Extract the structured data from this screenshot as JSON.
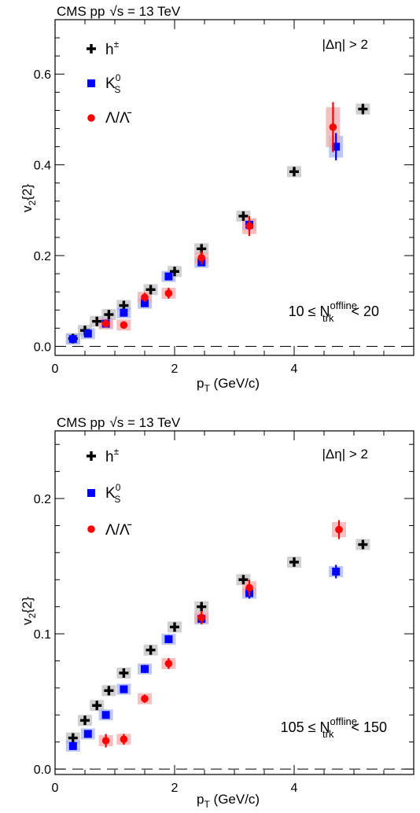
{
  "chart_data": [
    {
      "type": "scatter",
      "title": "CMS pp √s = 13 TeV",
      "title_parts": {
        "experiment": "CMS pp",
        "energy": "s = 13 TeV"
      },
      "annotation_eta": "|Δη| > 2",
      "annotation_mult": {
        "prefix": "10 ≤ N",
        "sup": "offline",
        "sub": "trk",
        "suffix": "< 20"
      },
      "xlabel": {
        "main": "p",
        "sub": "T",
        "rest": " (GeV/c)"
      },
      "ylabel": {
        "main": "v",
        "sub": "2",
        "rest": "{2}"
      },
      "xlim": [
        0,
        6
      ],
      "ylim": [
        -0.02,
        0.72
      ],
      "xticks": [
        0,
        2,
        4
      ],
      "xtick_labels": [
        "0",
        "2",
        "4"
      ],
      "yticks": [
        0.0,
        0.2,
        0.4,
        0.6
      ],
      "ytick_labels": [
        "0.0",
        "0.2",
        "0.4",
        "0.6"
      ],
      "legend_position": "top-left",
      "series": [
        {
          "name": "h",
          "name_sup": "±",
          "marker": "cross",
          "color": "#000000",
          "box_color": "#c0c0c0",
          "x": [
            0.3,
            0.5,
            0.7,
            0.9,
            1.15,
            1.6,
            2.0,
            2.45,
            3.15,
            4.0,
            5.15
          ],
          "y": [
            0.017,
            0.035,
            0.055,
            0.07,
            0.09,
            0.125,
            0.165,
            0.215,
            0.287,
            0.385,
            0.523
          ],
          "err": [
            0.003,
            0.003,
            0.003,
            0.004,
            0.004,
            0.005,
            0.006,
            0.007,
            0.008,
            0.009,
            0.012
          ]
        },
        {
          "name": "K",
          "name_sub": "S",
          "name_sup": "0",
          "marker": "square",
          "color": "#0000ff",
          "box_color": "#a9b4f0",
          "x": [
            0.3,
            0.55,
            0.85,
            1.15,
            1.5,
            1.9,
            2.45,
            3.25,
            4.7
          ],
          "y": [
            0.016,
            0.028,
            0.05,
            0.074,
            0.095,
            0.154,
            0.185,
            0.268,
            0.44
          ],
          "err": [
            0.003,
            0.003,
            0.004,
            0.004,
            0.005,
            0.006,
            0.008,
            0.01,
            0.03
          ]
        },
        {
          "name": "Λ/Λ̄",
          "marker": "circle",
          "color": "#ff0000",
          "box_color": "#f4a9a9",
          "x": [
            0.85,
            1.15,
            1.5,
            1.9,
            2.45,
            3.25,
            4.65
          ],
          "y": [
            0.05,
            0.047,
            0.108,
            0.117,
            0.195,
            0.265,
            0.483
          ],
          "err": [
            0.006,
            0.008,
            0.01,
            0.012,
            0.015,
            0.022,
            0.055
          ]
        }
      ]
    },
    {
      "type": "scatter",
      "title": "CMS pp √s = 13 TeV",
      "title_parts": {
        "experiment": "CMS pp",
        "energy": "s = 13 TeV"
      },
      "annotation_eta": "|Δη| > 2",
      "annotation_mult": {
        "prefix": "105 ≤ N",
        "sup": "offline",
        "sub": "trk",
        "suffix": "< 150"
      },
      "xlabel": {
        "main": "p",
        "sub": "T",
        "rest": " (GeV/c)"
      },
      "ylabel": {
        "main": "v",
        "sub": "2",
        "rest": "{2}"
      },
      "xlim": [
        0,
        6
      ],
      "ylim": [
        -0.004,
        0.25
      ],
      "xticks": [
        0,
        2,
        4
      ],
      "xtick_labels": [
        "0",
        "2",
        "4"
      ],
      "yticks": [
        0.0,
        0.1,
        0.2
      ],
      "ytick_labels": [
        "0.0",
        "0.1",
        "0.2"
      ],
      "legend_position": "top-left",
      "series": [
        {
          "name": "h",
          "name_sup": "±",
          "marker": "cross",
          "color": "#000000",
          "box_color": "#c0c0c0",
          "x": [
            0.3,
            0.5,
            0.7,
            0.9,
            1.15,
            1.6,
            2.0,
            2.45,
            3.15,
            4.0,
            5.15
          ],
          "y": [
            0.023,
            0.036,
            0.047,
            0.058,
            0.071,
            0.088,
            0.105,
            0.12,
            0.14,
            0.153,
            0.166
          ],
          "err": [
            0.002,
            0.002,
            0.002,
            0.002,
            0.002,
            0.003,
            0.003,
            0.003,
            0.003,
            0.003,
            0.003
          ]
        },
        {
          "name": "K",
          "name_sub": "S",
          "name_sup": "0",
          "marker": "square",
          "color": "#0000ff",
          "box_color": "#a9b4f0",
          "x": [
            0.3,
            0.55,
            0.85,
            1.15,
            1.5,
            1.9,
            2.45,
            3.25,
            4.7
          ],
          "y": [
            0.017,
            0.026,
            0.04,
            0.059,
            0.074,
            0.096,
            0.111,
            0.13,
            0.146
          ],
          "err": [
            0.002,
            0.002,
            0.002,
            0.002,
            0.003,
            0.003,
            0.004,
            0.004,
            0.005
          ]
        },
        {
          "name": "Λ/Λ̄",
          "marker": "circle",
          "color": "#ff0000",
          "box_color": "#f4a9a9",
          "x": [
            0.85,
            1.15,
            1.5,
            1.9,
            2.45,
            3.25,
            4.75
          ],
          "y": [
            0.021,
            0.022,
            0.052,
            0.078,
            0.112,
            0.134,
            0.177
          ],
          "err": [
            0.005,
            0.004,
            0.003,
            0.004,
            0.005,
            0.006,
            0.007
          ]
        }
      ]
    }
  ]
}
